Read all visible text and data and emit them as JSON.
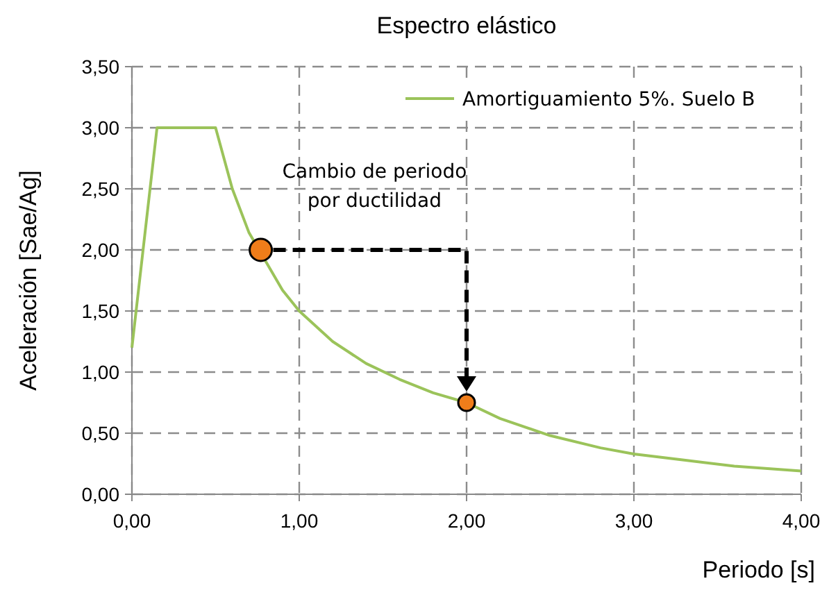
{
  "chart_data": {
    "type": "line",
    "title": "Espectro elástico",
    "xlabel": "Periodo [s]",
    "ylabel": "Aceleración [Sae/Ag]",
    "xlim": [
      0,
      4
    ],
    "ylim": [
      0,
      3.5
    ],
    "xticks": [
      {
        "value": 0,
        "label": "0,00"
      },
      {
        "value": 1,
        "label": "1,00"
      },
      {
        "value": 2,
        "label": "2,00"
      },
      {
        "value": 3,
        "label": "3,00"
      },
      {
        "value": 4,
        "label": "4,00"
      }
    ],
    "yticks": [
      {
        "value": 0,
        "label": "0,00"
      },
      {
        "value": 0.5,
        "label": "0,50"
      },
      {
        "value": 1,
        "label": "1,00"
      },
      {
        "value": 1.5,
        "label": "1,50"
      },
      {
        "value": 2,
        "label": "2,00"
      },
      {
        "value": 2.5,
        "label": "2,50"
      },
      {
        "value": 3,
        "label": "3,00"
      },
      {
        "value": 3.5,
        "label": "3,50"
      }
    ],
    "grid": true,
    "legend": "top right",
    "series": [
      {
        "name": "Amortiguamiento 5%. Suelo B",
        "color": "#9bc35a",
        "marker": "none",
        "x": [
          0,
          0.15,
          0.5,
          0.6,
          0.7,
          0.9,
          1.0,
          1.2,
          1.4,
          1.6,
          1.8,
          2.0,
          2.2,
          2.5,
          2.8,
          3.0,
          3.3,
          3.6,
          4.0
        ],
        "values": [
          1.2,
          3.0,
          3.0,
          2.5,
          2.14,
          1.67,
          1.5,
          1.25,
          1.07,
          0.94,
          0.83,
          0.75,
          0.62,
          0.48,
          0.38,
          0.33,
          0.28,
          0.23,
          0.19
        ]
      },
      {
        "type": "scatter",
        "color": "#f07d1a",
        "marker": "circle",
        "x": [
          0.77,
          2.0
        ],
        "values": [
          2.0,
          0.75
        ]
      }
    ],
    "annotations": [
      "Cambio de periodo por ductilidad"
    ]
  }
}
